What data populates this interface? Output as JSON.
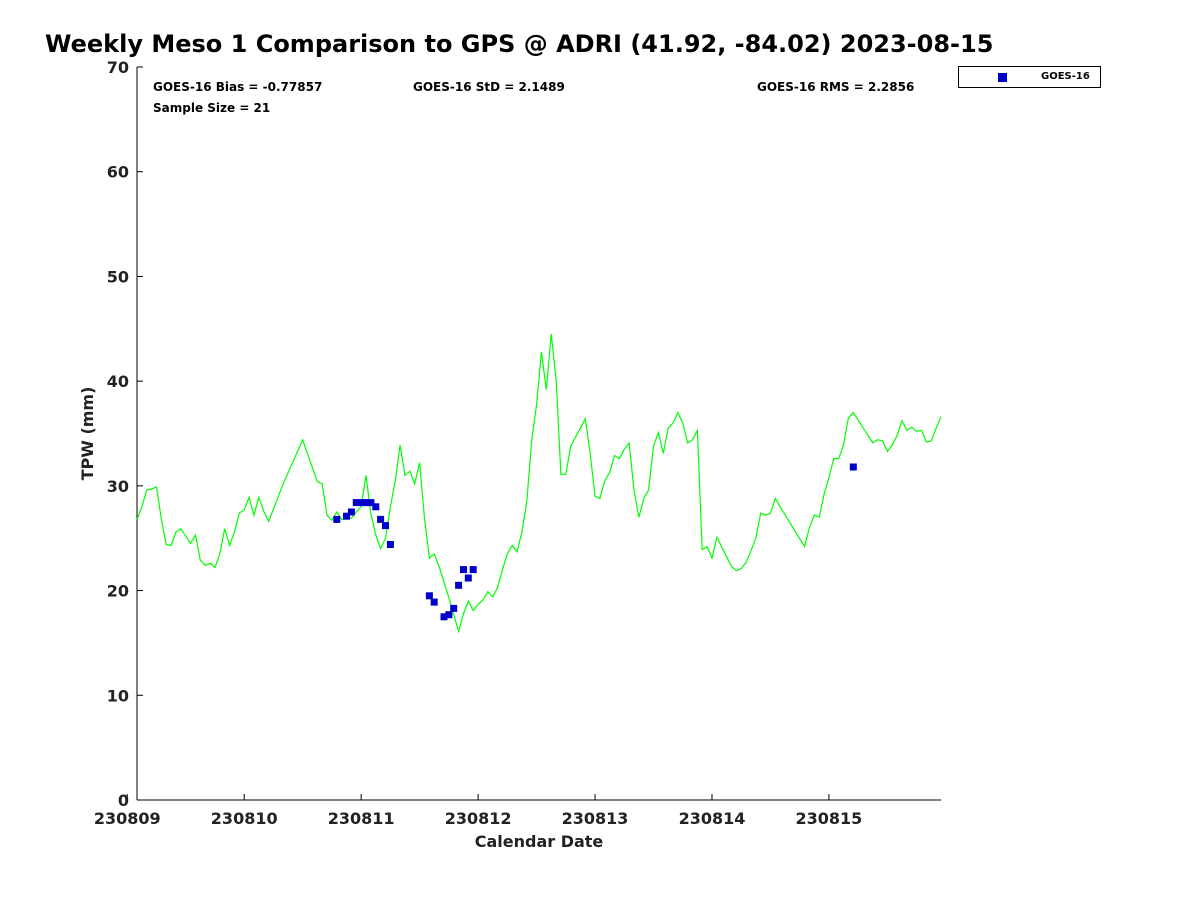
{
  "chart_data": {
    "type": "line+scatter",
    "title": "Weekly Meso 1 Comparison to GPS @ ADRI (41.92, -84.02) 2023-08-15",
    "xlabel": "Calendar Date",
    "ylabel": "TPW (mm)",
    "xlim": [
      "230809 02:00",
      "230815 23:00"
    ],
    "x_unit": "YYMMDD HH:MM",
    "ylim": [
      0,
      70
    ],
    "x_ticks": [
      "230809",
      "230810",
      "230811",
      "230812",
      "230813",
      "230814",
      "230815"
    ],
    "y_ticks": [
      0,
      10,
      20,
      30,
      40,
      50,
      60,
      70
    ],
    "grid": false,
    "legend_position": "outside-top-right",
    "stats": {
      "bias": "GOES-16 Bias = -0.77857",
      "std": "GOES-16 StD = 2.1489",
      "rms": "GOES-16 RMS = 2.2856",
      "sample": "Sample Size = 21"
    },
    "series": [
      {
        "kind": "line",
        "color": "#00ff00",
        "points": [
          [
            "230809 02:00",
            26.8
          ],
          [
            "230809 03:00",
            28.0
          ],
          [
            "230809 04:00",
            29.6
          ],
          [
            "230809 05:00",
            29.7
          ],
          [
            "230809 06:00",
            29.9
          ],
          [
            "230809 07:00",
            26.8
          ],
          [
            "230809 08:00",
            24.4
          ],
          [
            "230809 09:00",
            24.3
          ],
          [
            "230809 10:00",
            25.6
          ],
          [
            "230809 11:00",
            25.9
          ],
          [
            "230809 12:00",
            25.2
          ],
          [
            "230809 13:00",
            24.5
          ],
          [
            "230809 14:00",
            25.3
          ],
          [
            "230809 15:00",
            22.9
          ],
          [
            "230809 16:00",
            22.4
          ],
          [
            "230809 17:00",
            22.6
          ],
          [
            "230809 18:00",
            22.2
          ],
          [
            "230809 19:00",
            23.5
          ],
          [
            "230809 20:00",
            25.9
          ],
          [
            "230809 21:00",
            24.3
          ],
          [
            "230809 22:00",
            25.6
          ],
          [
            "230809 23:00",
            27.4
          ],
          [
            "230810 00:00",
            27.7
          ],
          [
            "230810 01:00",
            28.9
          ],
          [
            "230810 02:00",
            27.2
          ],
          [
            "230810 03:00",
            28.9
          ],
          [
            "230810 04:00",
            27.6
          ],
          [
            "230810 05:00",
            26.6
          ],
          [
            "230810 08:00",
            30.2
          ],
          [
            "230810 12:00",
            34.4
          ],
          [
            "230810 15:00",
            30.4
          ],
          [
            "230810 16:00",
            30.2
          ],
          [
            "230810 17:00",
            27.2
          ],
          [
            "230810 18:00",
            26.7
          ],
          [
            "230810 19:00",
            27.5
          ],
          [
            "230810 20:00",
            26.8
          ],
          [
            "230810 22:00",
            26.9
          ],
          [
            "230810 23:00",
            27.5
          ],
          [
            "230811 00:00",
            28.0
          ],
          [
            "230811 01:00",
            31.0
          ],
          [
            "230811 02:00",
            27.3
          ],
          [
            "230811 03:00",
            25.3
          ],
          [
            "230811 04:00",
            24.0
          ],
          [
            "230811 05:00",
            25.0
          ],
          [
            "230811 06:00",
            28.0
          ],
          [
            "230811 07:00",
            30.5
          ],
          [
            "230811 08:00",
            33.9
          ],
          [
            "230811 09:00",
            31.0
          ],
          [
            "230811 10:00",
            31.4
          ],
          [
            "230811 11:00",
            30.2
          ],
          [
            "230811 12:00",
            32.2
          ],
          [
            "230811 13:00",
            26.9
          ],
          [
            "230811 14:00",
            23.1
          ],
          [
            "230811 15:00",
            23.5
          ],
          [
            "230811 16:00",
            22.3
          ],
          [
            "230811 18:00",
            19.3
          ],
          [
            "230811 20:00",
            16.1
          ],
          [
            "230811 21:00",
            17.8
          ],
          [
            "230811 22:00",
            19.0
          ],
          [
            "230811 23:00",
            18.1
          ],
          [
            "230812 00:00",
            18.7
          ],
          [
            "230812 01:00",
            19.1
          ],
          [
            "230812 02:00",
            19.9
          ],
          [
            "230812 03:00",
            19.4
          ],
          [
            "230812 04:00",
            20.3
          ],
          [
            "230812 05:00",
            22.0
          ],
          [
            "230812 06:00",
            23.5
          ],
          [
            "230812 07:00",
            24.3
          ],
          [
            "230812 08:00",
            23.7
          ],
          [
            "230812 09:00",
            25.6
          ],
          [
            "230812 10:00",
            28.5
          ],
          [
            "230812 11:00",
            34.3
          ],
          [
            "230812 12:00",
            37.8
          ],
          [
            "230812 13:00",
            42.8
          ],
          [
            "230812 14:00",
            39.2
          ],
          [
            "230812 15:00",
            44.5
          ],
          [
            "230812 16:00",
            40.2
          ],
          [
            "230812 17:00",
            31.1
          ],
          [
            "230812 18:00",
            31.1
          ],
          [
            "230812 19:00",
            33.8
          ],
          [
            "230812 22:00",
            36.4
          ],
          [
            "230812 23:00",
            33.1
          ],
          [
            "230813 00:00",
            29.0
          ],
          [
            "230813 01:00",
            28.8
          ],
          [
            "230813 02:00",
            30.5
          ],
          [
            "230813 03:00",
            31.3
          ],
          [
            "230813 04:00",
            32.9
          ],
          [
            "230813 05:00",
            32.6
          ],
          [
            "230813 06:00",
            33.5
          ],
          [
            "230813 07:00",
            34.1
          ],
          [
            "230813 08:00",
            29.6
          ],
          [
            "230813 09:00",
            27.0
          ],
          [
            "230813 10:00",
            28.8
          ],
          [
            "230813 11:00",
            29.6
          ],
          [
            "230813 12:00",
            33.8
          ],
          [
            "230813 13:00",
            35.1
          ],
          [
            "230813 14:00",
            33.1
          ],
          [
            "230813 15:00",
            35.5
          ],
          [
            "230813 16:00",
            36.0
          ],
          [
            "230813 17:00",
            37.0
          ],
          [
            "230813 18:00",
            36.0
          ],
          [
            "230813 19:00",
            34.1
          ],
          [
            "230813 20:00",
            34.4
          ],
          [
            "230813 21:00",
            35.3
          ],
          [
            "230813 22:00",
            23.9
          ],
          [
            "230813 23:00",
            24.2
          ],
          [
            "230814 00:00",
            23.1
          ],
          [
            "230814 01:00",
            25.1
          ],
          [
            "230814 04:00",
            22.3
          ],
          [
            "230814 05:00",
            21.9
          ],
          [
            "230814 06:00",
            22.1
          ],
          [
            "230814 07:00",
            22.7
          ],
          [
            "230814 08:00",
            23.8
          ],
          [
            "230814 09:00",
            25.0
          ],
          [
            "230814 10:00",
            27.4
          ],
          [
            "230814 11:00",
            27.2
          ],
          [
            "230814 12:00",
            27.4
          ],
          [
            "230814 13:00",
            28.8
          ],
          [
            "230814 14:00",
            28.0
          ],
          [
            "230814 19:00",
            24.2
          ],
          [
            "230814 20:00",
            26.0
          ],
          [
            "230814 21:00",
            27.2
          ],
          [
            "230814 22:00",
            27.0
          ],
          [
            "230814 23:00",
            29.2
          ],
          [
            "230815 00:00",
            30.8
          ],
          [
            "230815 01:00",
            32.6
          ],
          [
            "230815 02:00",
            32.6
          ],
          [
            "230815 03:00",
            33.9
          ],
          [
            "230815 04:00",
            36.5
          ],
          [
            "230815 05:00",
            37.0
          ],
          [
            "230815 09:00",
            34.1
          ],
          [
            "230815 10:00",
            34.4
          ],
          [
            "230815 11:00",
            34.3
          ],
          [
            "230815 12:00",
            33.3
          ],
          [
            "230815 13:00",
            33.9
          ],
          [
            "230815 14:00",
            34.8
          ],
          [
            "230815 15:00",
            36.2
          ],
          [
            "230815 16:00",
            35.3
          ],
          [
            "230815 17:00",
            35.6
          ],
          [
            "230815 18:00",
            35.2
          ],
          [
            "230815 19:00",
            35.3
          ],
          [
            "230815 20:00",
            34.2
          ],
          [
            "230815 21:00",
            34.3
          ],
          [
            "230815 22:00",
            35.5
          ],
          [
            "230815 23:00",
            36.6
          ]
        ]
      },
      {
        "kind": "scatter",
        "name": "GOES-16",
        "color": "#0000cc",
        "points": [
          [
            "230810 19:00",
            26.8
          ],
          [
            "230810 21:00",
            27.1
          ],
          [
            "230810 22:00",
            27.5
          ],
          [
            "230810 23:00",
            28.4
          ],
          [
            "230811 00:00",
            28.4
          ],
          [
            "230811 01:00",
            28.4
          ],
          [
            "230811 02:00",
            28.4
          ],
          [
            "230811 03:00",
            28.0
          ],
          [
            "230811 04:00",
            26.8
          ],
          [
            "230811 05:00",
            26.2
          ],
          [
            "230811 06:00",
            24.4
          ],
          [
            "230811 14:00",
            19.5
          ],
          [
            "230811 15:00",
            18.9
          ],
          [
            "230811 17:00",
            17.5
          ],
          [
            "230811 18:00",
            17.7
          ],
          [
            "230811 19:00",
            18.3
          ],
          [
            "230811 20:00",
            20.5
          ],
          [
            "230811 21:00",
            22.0
          ],
          [
            "230811 22:00",
            21.2
          ],
          [
            "230811 23:00",
            22.0
          ],
          [
            "230815 05:00",
            31.8
          ]
        ]
      }
    ]
  }
}
